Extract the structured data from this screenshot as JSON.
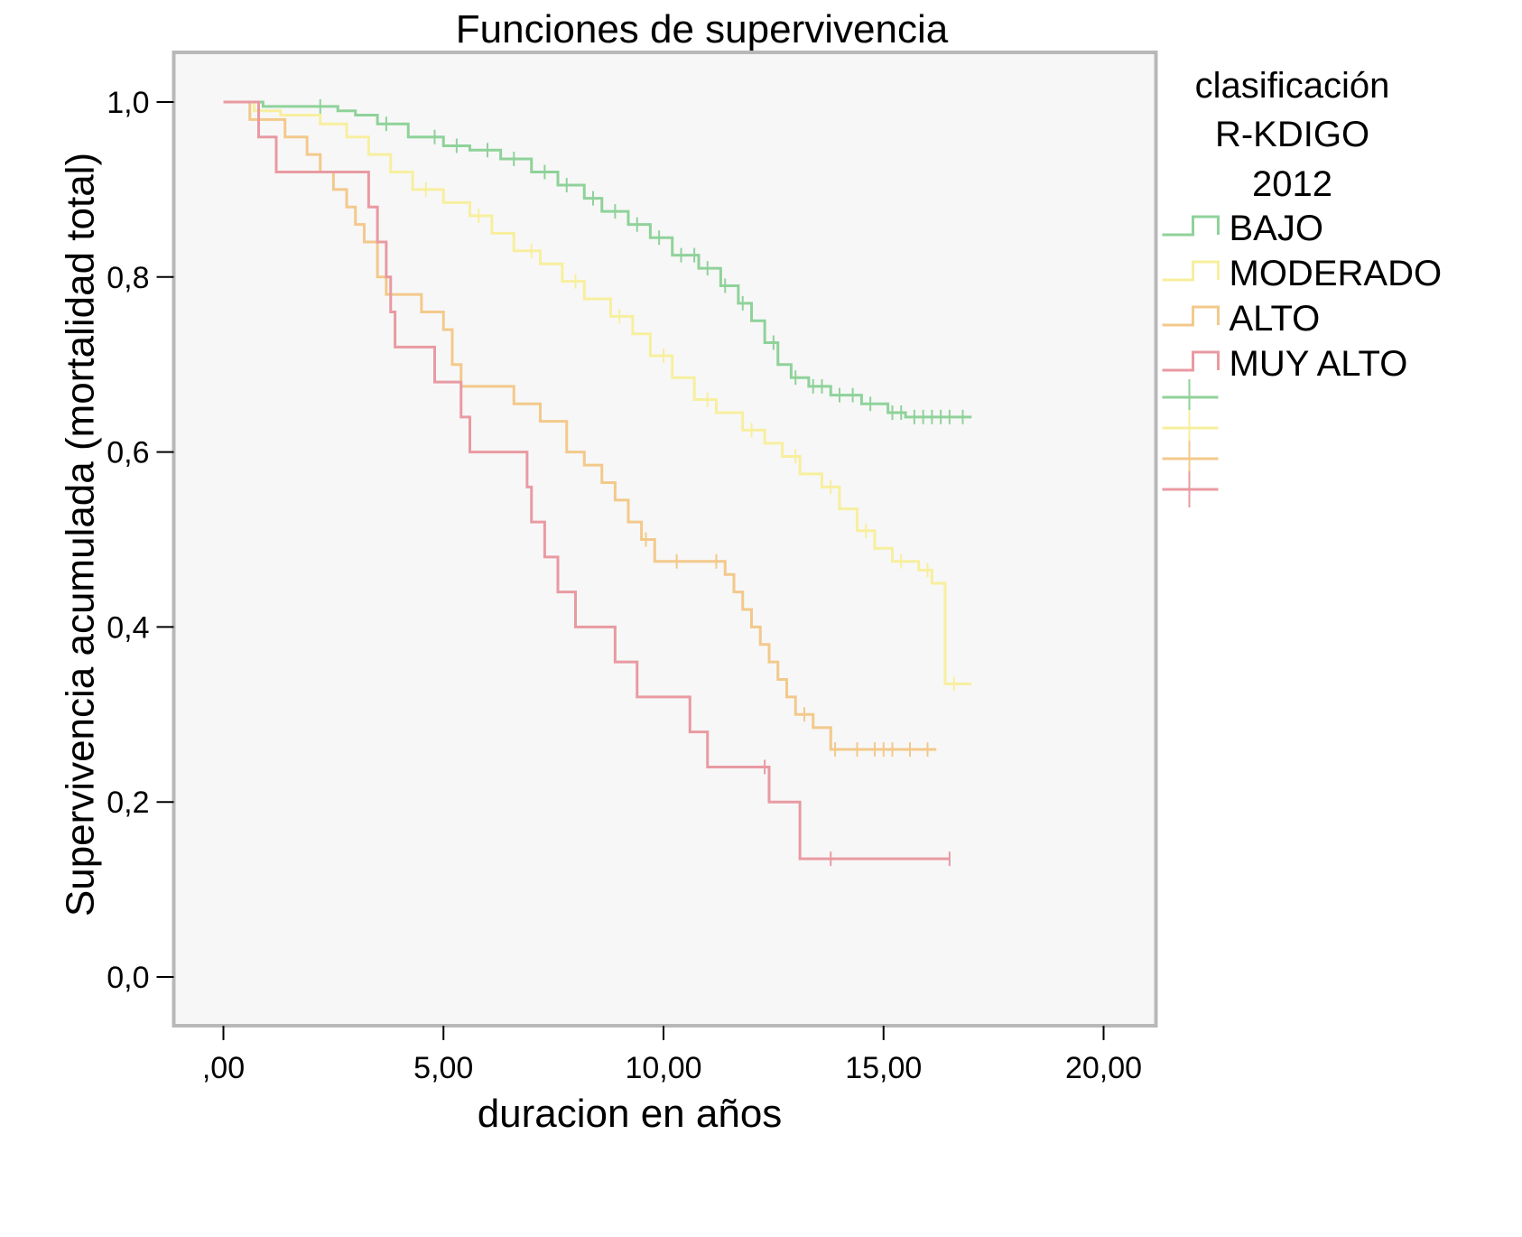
{
  "chart_data": {
    "type": "line",
    "step": true,
    "title": "Funciones de supervivencia",
    "xlabel": "duracion en años",
    "ylabel": "Supervivencia acumulada (mortalidad total)",
    "xlim": [
      0,
      20
    ],
    "ylim": [
      0,
      1
    ],
    "xticks": [
      0,
      5,
      10,
      15,
      20
    ],
    "xtick_labels": [
      ",00",
      "5,00",
      "10,00",
      "15,00",
      "20,00"
    ],
    "yticks": [
      0,
      0.2,
      0.4,
      0.6,
      0.8,
      1.0
    ],
    "ytick_labels": [
      "0,0",
      "0,2",
      "0,4",
      "0,6",
      "0,8",
      "1,0"
    ],
    "grid": false,
    "legend": {
      "placement": "right",
      "title_lines": [
        "clasificación",
        "R-KDIGO",
        "2012"
      ]
    },
    "series": [
      {
        "name": "BAJO",
        "color": "#8fd29a",
        "points": [
          [
            0,
            1.0
          ],
          [
            0.9,
            1.0
          ],
          [
            0.9,
            0.995
          ],
          [
            2.5,
            0.995
          ],
          [
            2.6,
            0.99
          ],
          [
            3.0,
            0.985
          ],
          [
            3.5,
            0.975
          ],
          [
            4.2,
            0.96
          ],
          [
            5.0,
            0.95
          ],
          [
            5.6,
            0.945
          ],
          [
            6.3,
            0.935
          ],
          [
            7.0,
            0.92
          ],
          [
            7.6,
            0.905
          ],
          [
            8.2,
            0.89
          ],
          [
            8.6,
            0.875
          ],
          [
            9.2,
            0.86
          ],
          [
            9.7,
            0.845
          ],
          [
            10.2,
            0.825
          ],
          [
            10.8,
            0.81
          ],
          [
            11.3,
            0.79
          ],
          [
            11.7,
            0.77
          ],
          [
            12.0,
            0.75
          ],
          [
            12.3,
            0.725
          ],
          [
            12.6,
            0.7
          ],
          [
            12.9,
            0.685
          ],
          [
            13.3,
            0.675
          ],
          [
            13.8,
            0.665
          ],
          [
            14.5,
            0.655
          ],
          [
            15.1,
            0.645
          ],
          [
            15.5,
            0.64
          ],
          [
            17.0,
            0.64
          ]
        ],
        "censored_x": [
          2.2,
          3.7,
          4.8,
          5.3,
          6.0,
          6.6,
          7.3,
          7.8,
          8.4,
          8.9,
          9.4,
          9.9,
          10.4,
          10.7,
          11.0,
          11.4,
          11.8,
          12.5,
          13.0,
          13.4,
          13.6,
          14.0,
          14.3,
          14.7,
          15.2,
          15.4,
          15.7,
          15.9,
          16.1,
          16.3,
          16.5,
          16.8
        ]
      },
      {
        "name": "MODERADO",
        "color": "#f7ef9e",
        "points": [
          [
            0,
            1.0
          ],
          [
            0.7,
            0.99
          ],
          [
            1.3,
            0.985
          ],
          [
            2.2,
            0.975
          ],
          [
            2.8,
            0.96
          ],
          [
            3.3,
            0.94
          ],
          [
            3.8,
            0.92
          ],
          [
            4.3,
            0.9
          ],
          [
            5.0,
            0.885
          ],
          [
            5.6,
            0.87
          ],
          [
            6.1,
            0.85
          ],
          [
            6.6,
            0.83
          ],
          [
            7.2,
            0.815
          ],
          [
            7.7,
            0.795
          ],
          [
            8.2,
            0.775
          ],
          [
            8.8,
            0.755
          ],
          [
            9.3,
            0.735
          ],
          [
            9.7,
            0.71
          ],
          [
            10.2,
            0.685
          ],
          [
            10.7,
            0.66
          ],
          [
            11.2,
            0.645
          ],
          [
            11.8,
            0.625
          ],
          [
            12.3,
            0.61
          ],
          [
            12.7,
            0.595
          ],
          [
            13.1,
            0.575
          ],
          [
            13.6,
            0.56
          ],
          [
            14.0,
            0.535
          ],
          [
            14.4,
            0.51
          ],
          [
            14.8,
            0.49
          ],
          [
            15.2,
            0.475
          ],
          [
            15.8,
            0.465
          ],
          [
            16.1,
            0.45
          ],
          [
            16.4,
            0.45
          ],
          [
            16.4,
            0.335
          ],
          [
            17.0,
            0.335
          ]
        ],
        "censored_x": [
          4.6,
          5.8,
          7.0,
          8.0,
          9.0,
          10.0,
          11.0,
          12.0,
          13.0,
          13.8,
          14.6,
          15.4,
          16.0,
          16.6
        ]
      },
      {
        "name": "ALTO",
        "color": "#f3c98b",
        "points": [
          [
            0,
            1.0
          ],
          [
            0.6,
            0.98
          ],
          [
            1.4,
            0.96
          ],
          [
            1.9,
            0.94
          ],
          [
            2.2,
            0.92
          ],
          [
            2.5,
            0.9
          ],
          [
            2.8,
            0.88
          ],
          [
            3.0,
            0.86
          ],
          [
            3.2,
            0.84
          ],
          [
            3.5,
            0.8
          ],
          [
            3.7,
            0.78
          ],
          [
            4.5,
            0.76
          ],
          [
            5.0,
            0.74
          ],
          [
            5.2,
            0.7
          ],
          [
            5.4,
            0.675
          ],
          [
            6.6,
            0.655
          ],
          [
            7.2,
            0.635
          ],
          [
            7.8,
            0.6
          ],
          [
            8.2,
            0.585
          ],
          [
            8.6,
            0.565
          ],
          [
            8.9,
            0.545
          ],
          [
            9.2,
            0.52
          ],
          [
            9.5,
            0.5
          ],
          [
            9.8,
            0.475
          ],
          [
            11.4,
            0.46
          ],
          [
            11.6,
            0.44
          ],
          [
            11.8,
            0.42
          ],
          [
            12.0,
            0.4
          ],
          [
            12.2,
            0.38
          ],
          [
            12.4,
            0.36
          ],
          [
            12.6,
            0.34
          ],
          [
            12.8,
            0.32
          ],
          [
            13.0,
            0.3
          ],
          [
            13.4,
            0.285
          ],
          [
            13.8,
            0.26
          ],
          [
            16.2,
            0.26
          ]
        ],
        "censored_x": [
          9.6,
          10.3,
          11.2,
          13.2,
          13.9,
          14.4,
          14.8,
          15.0,
          15.2,
          15.6,
          16.0
        ]
      },
      {
        "name": "MUY ALTO",
        "color": "#e99aa2",
        "points": [
          [
            0,
            1.0
          ],
          [
            0.8,
            1.0
          ],
          [
            0.8,
            0.96
          ],
          [
            1.2,
            0.96
          ],
          [
            1.2,
            0.92
          ],
          [
            3.3,
            0.92
          ],
          [
            3.3,
            0.88
          ],
          [
            3.5,
            0.84
          ],
          [
            3.7,
            0.8
          ],
          [
            3.8,
            0.76
          ],
          [
            3.9,
            0.72
          ],
          [
            4.8,
            0.68
          ],
          [
            5.4,
            0.64
          ],
          [
            5.6,
            0.6
          ],
          [
            6.9,
            0.56
          ],
          [
            7.0,
            0.52
          ],
          [
            7.3,
            0.48
          ],
          [
            7.6,
            0.44
          ],
          [
            8.0,
            0.4
          ],
          [
            8.9,
            0.36
          ],
          [
            9.4,
            0.32
          ],
          [
            10.6,
            0.28
          ],
          [
            11.0,
            0.24
          ],
          [
            12.4,
            0.2
          ],
          [
            13.1,
            0.16
          ],
          [
            13.1,
            0.135
          ],
          [
            16.5,
            0.135
          ]
        ],
        "censored_x": [
          12.3,
          13.8,
          16.5
        ]
      }
    ]
  }
}
